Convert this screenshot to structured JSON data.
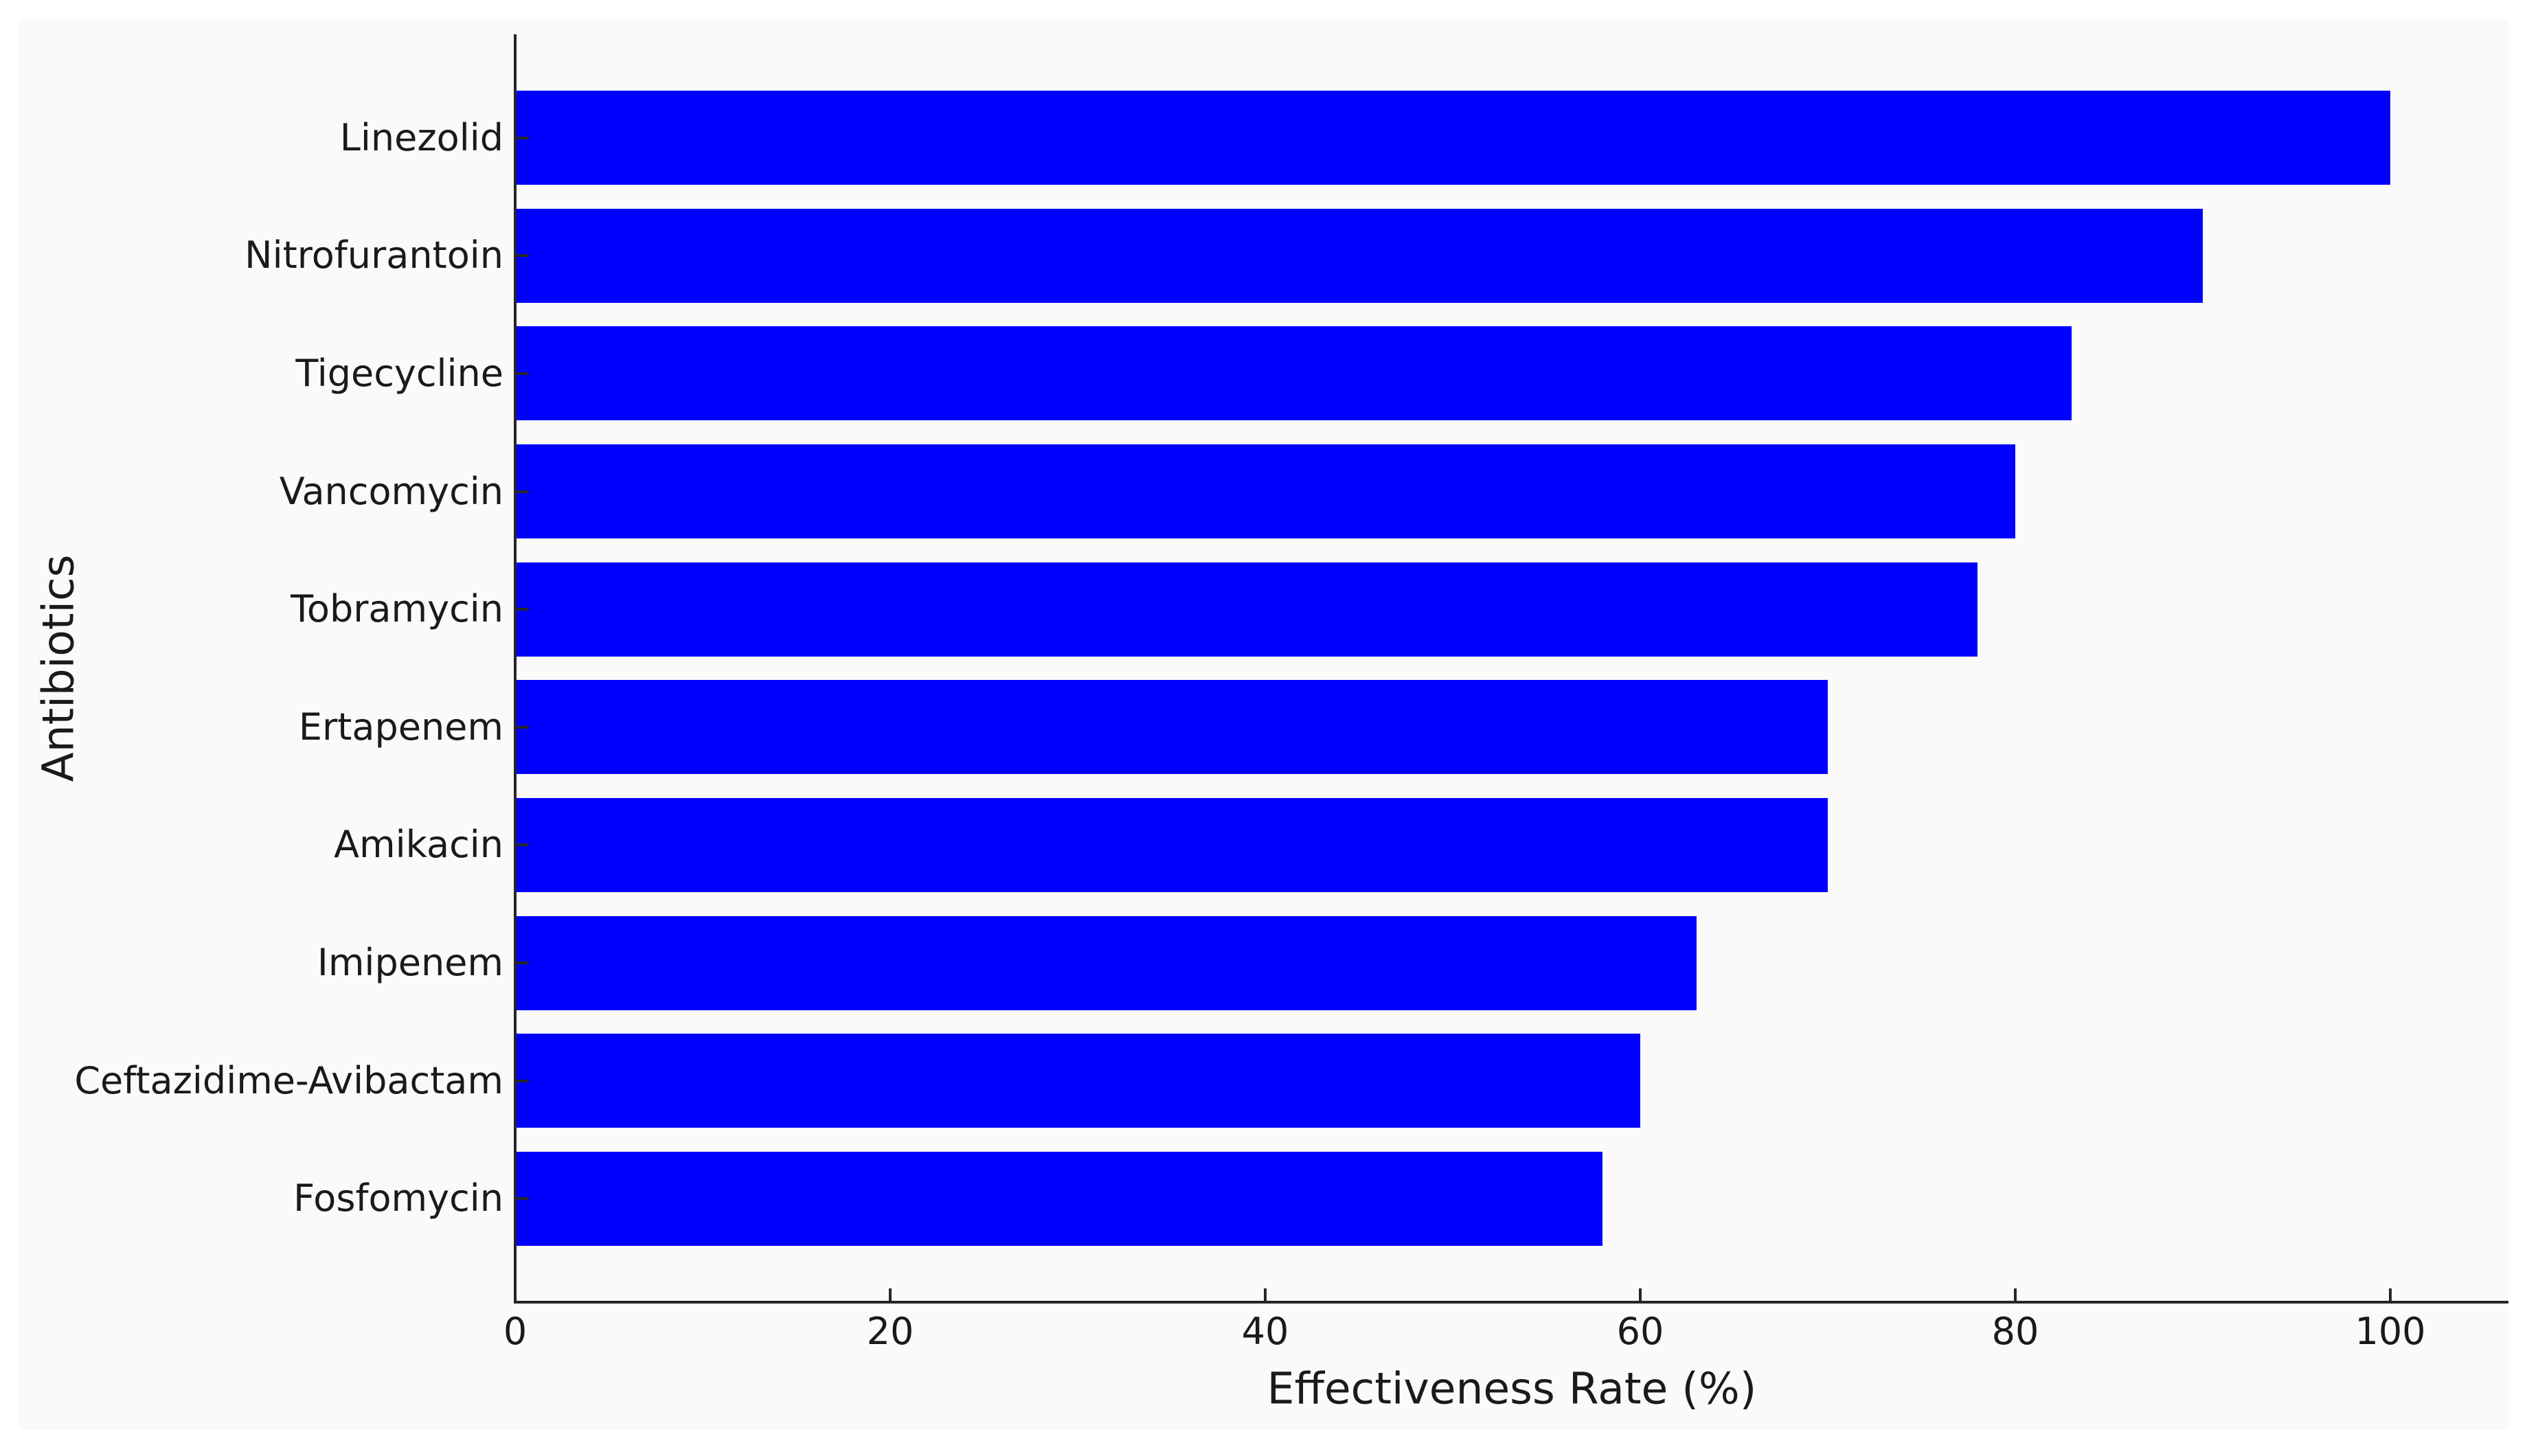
{
  "chart_data": {
    "type": "bar",
    "orientation": "horizontal",
    "title": "",
    "xlabel": "Effectiveness Rate (%)",
    "ylabel": "Antibiotics",
    "categories": [
      "Linezolid",
      "Nitrofurantoin",
      "Tigecycline",
      "Vancomycin",
      "Tobramycin",
      "Ertapenem",
      "Amikacin",
      "Imipenem",
      "Ceftazidime-Avibactam",
      "Fosfomycin"
    ],
    "values": [
      100,
      90,
      83,
      80,
      78,
      70,
      70,
      63,
      60,
      58
    ],
    "xlim": [
      0,
      105
    ],
    "xticks": [
      0,
      20,
      40,
      60,
      80,
      100
    ],
    "grid": false,
    "legend": null,
    "colors": {
      "bar": "#0000FF",
      "figure_background": "#fafafa",
      "page_background": "#ffffff",
      "axis": "#262626",
      "text": "#1a1a1a"
    }
  }
}
